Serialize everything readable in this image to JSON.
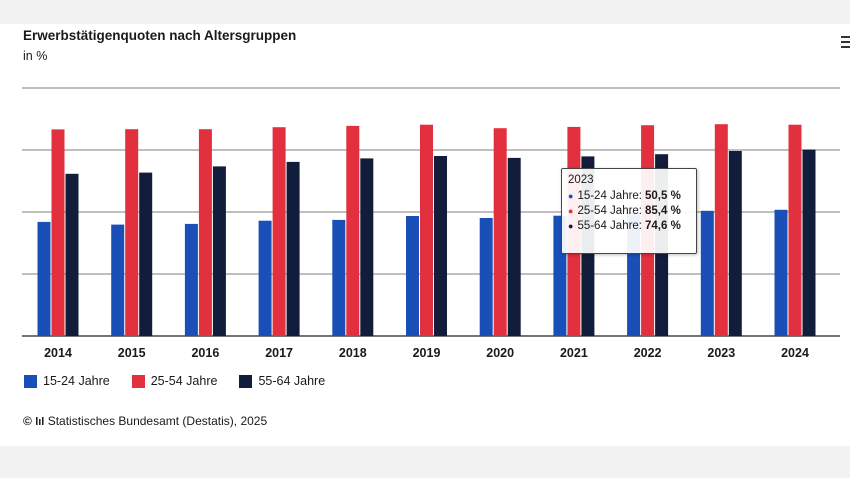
{
  "title": "Erwerbstätigenquoten nach Altersgruppen",
  "unit": "in %",
  "source": "Statistisches Bundesamt (Destatis), 2025",
  "source_mark": "©",
  "menu_icon": "hamburger-menu-icon",
  "colors": {
    "s1": "#1a4fb8",
    "s2": "#e3303e",
    "s3": "#111d3a",
    "grid": "#333333"
  },
  "tooltip": {
    "year": "2023",
    "rows": [
      {
        "label": "15-24 Jahre:",
        "value": "50,5 %"
      },
      {
        "label": "25-54 Jahre:",
        "value": "85,4 %"
      },
      {
        "label": "55-64 Jahre:",
        "value": "74,6 %"
      }
    ]
  },
  "chart_data": {
    "type": "bar",
    "title": "Erwerbstätigenquoten nach Altersgruppen",
    "ylabel": "in %",
    "ylim": [
      0,
      100
    ],
    "y_tick_step": 25,
    "grid": true,
    "legend_position": "bottom-left",
    "categories": [
      "2014",
      "2015",
      "2016",
      "2017",
      "2018",
      "2019",
      "2020",
      "2021",
      "2022",
      "2023",
      "2024"
    ],
    "series": [
      {
        "name": "15-24 Jahre",
        "values": [
          46.0,
          44.9,
          45.2,
          46.5,
          46.8,
          48.4,
          47.6,
          48.5,
          49.8,
          50.5,
          50.9
        ]
      },
      {
        "name": "25-54 Jahre",
        "values": [
          83.3,
          83.4,
          83.4,
          84.2,
          84.7,
          85.2,
          83.8,
          84.3,
          85.0,
          85.4,
          85.2
        ]
      },
      {
        "name": "55-64 Jahre",
        "values": [
          65.4,
          65.9,
          68.4,
          70.2,
          71.6,
          72.6,
          71.8,
          72.4,
          73.3,
          74.6,
          75.2
        ]
      }
    ]
  }
}
